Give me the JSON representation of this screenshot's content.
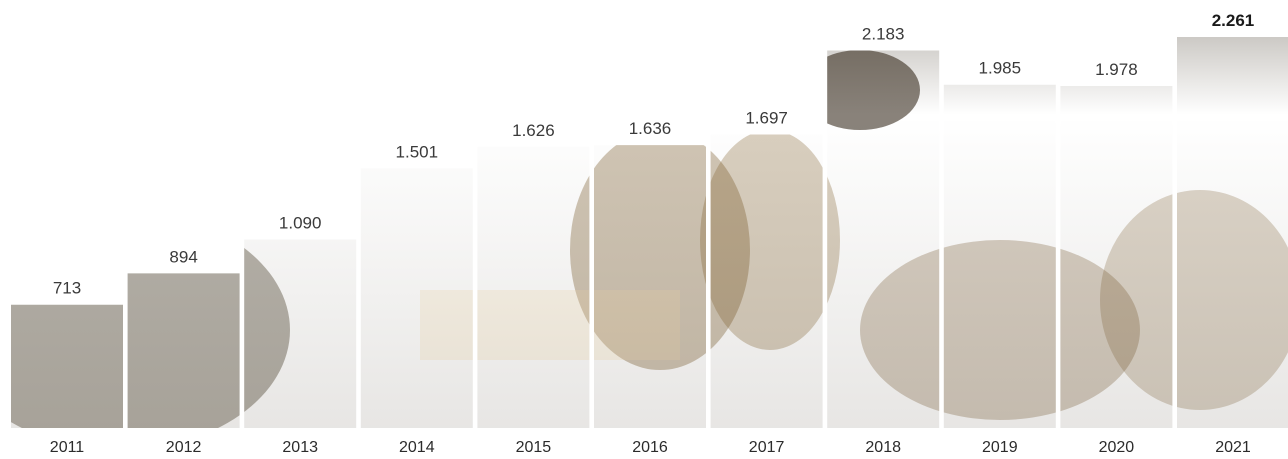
{
  "chart_data": {
    "type": "bar",
    "title": "",
    "xlabel": "",
    "ylabel": "",
    "categories": [
      "2011",
      "2012",
      "2013",
      "2014",
      "2015",
      "2016",
      "2017",
      "2018",
      "2019",
      "2020",
      "2021"
    ],
    "values": [
      713,
      894,
      1090,
      1501,
      1626,
      1636,
      1697,
      2183,
      1985,
      1978,
      2261
    ],
    "value_labels": [
      "713",
      "894",
      "1.090",
      "1.501",
      "1.626",
      "1.636",
      "1.697",
      "2.183",
      "1.985",
      "1.978",
      "2.261"
    ],
    "highlighted_index": 10,
    "ylim": [
      0,
      2261
    ],
    "grid": false,
    "legend": "none",
    "colors": {
      "bar": "#dca24a",
      "bar_dark": "#5e4a22",
      "bar_shadow": "#3b2d14",
      "label": "#3a3a3a",
      "highlight_label": "#1a1a1a"
    }
  }
}
